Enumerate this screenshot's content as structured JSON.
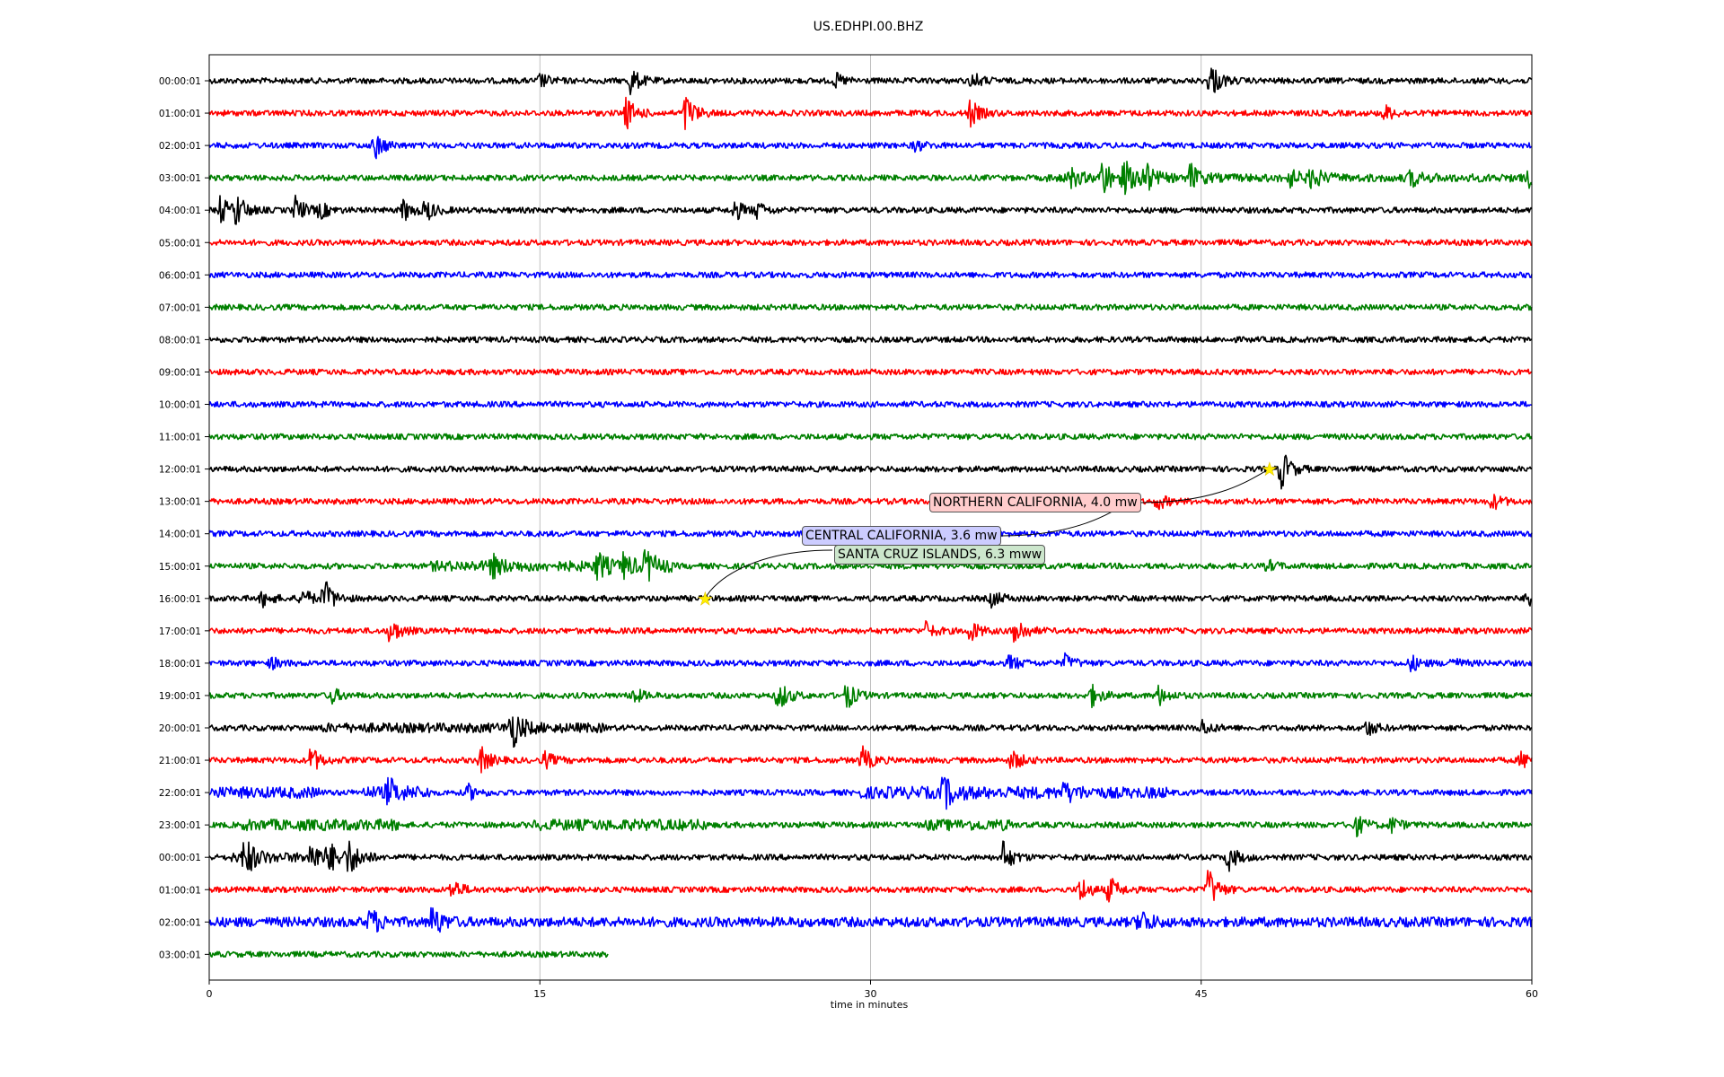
{
  "chart_data": {
    "type": "line",
    "title": "US.EDHPI.00.BHZ",
    "xlabel": "time in minutes",
    "xlim": [
      0,
      60
    ],
    "xticks": [
      "0",
      "15",
      "30",
      "45",
      "60"
    ],
    "grid": "vertical",
    "row_labels": [
      "00:00:01",
      "01:00:01",
      "02:00:01",
      "03:00:01",
      "04:00:01",
      "05:00:01",
      "06:00:01",
      "07:00:01",
      "08:00:01",
      "09:00:01",
      "10:00:01",
      "11:00:01",
      "12:00:01",
      "13:00:01",
      "14:00:01",
      "15:00:01",
      "16:00:01",
      "17:00:01",
      "18:00:01",
      "19:00:01",
      "20:00:01",
      "21:00:01",
      "22:00:01",
      "23:00:01",
      "00:00:01",
      "01:00:01",
      "02:00:01",
      "03:00:01"
    ],
    "row_colors": [
      "#000000",
      "#ff0000",
      "#0000ff",
      "#008000"
    ],
    "last_row_end_minute": 18.1,
    "events": [
      {
        "label": "NORTHERN CALIFORNIA, 4.0 mw",
        "row": 12,
        "minute": 48.1,
        "box_color": "#ffcccc"
      },
      {
        "label": "CENTRAL CALIFORNIA, 3.6 mw",
        "row": 13,
        "minute": 41.8,
        "box_color": "#ccccff"
      },
      {
        "label": "SANTA CRUZ ISLANDS, 6.3 mww",
        "row": 16,
        "minute": 22.5,
        "box_color": "#cce6cc"
      }
    ],
    "bursts": [
      [
        0,
        19.1,
        0.5
      ],
      [
        0,
        45.4,
        0.7
      ],
      [
        0,
        34.6,
        0.3
      ],
      [
        0,
        28.4,
        0.25
      ],
      [
        0,
        15.0,
        0.25
      ],
      [
        1,
        18.9,
        0.6
      ],
      [
        1,
        21.6,
        0.7
      ],
      [
        1,
        34.5,
        0.5
      ],
      [
        1,
        53.3,
        0.3
      ],
      [
        2,
        7.5,
        0.5
      ],
      [
        2,
        32.0,
        0.2
      ],
      [
        3,
        39.0,
        0.4
      ],
      [
        3,
        40.5,
        0.7
      ],
      [
        3,
        41.5,
        0.6
      ],
      [
        3,
        42.3,
        0.8
      ],
      [
        3,
        44.5,
        0.5
      ],
      [
        3,
        49.0,
        0.3
      ],
      [
        3,
        50.0,
        0.4
      ],
      [
        3,
        54.5,
        0.3
      ],
      [
        3,
        59.9,
        0.4
      ],
      [
        4,
        0.5,
        0.5
      ],
      [
        4,
        1.2,
        0.6
      ],
      [
        4,
        3.9,
        0.5
      ],
      [
        4,
        5.0,
        0.3
      ],
      [
        4,
        8.8,
        0.4
      ],
      [
        4,
        9.8,
        0.4
      ],
      [
        4,
        23.8,
        0.4
      ],
      [
        4,
        24.8,
        0.3
      ],
      [
        12,
        48.6,
        0.8
      ],
      [
        13,
        43.0,
        0.3
      ],
      [
        13,
        58.2,
        0.3
      ],
      [
        15,
        12.8,
        0.4
      ],
      [
        15,
        17.6,
        0.5
      ],
      [
        15,
        18.8,
        0.4
      ],
      [
        15,
        19.8,
        0.6
      ],
      [
        15,
        48.0,
        0.2
      ],
      [
        16,
        2.4,
        0.3
      ],
      [
        16,
        4.2,
        0.4
      ],
      [
        16,
        5.2,
        0.7
      ],
      [
        16,
        35.5,
        0.3
      ],
      [
        16,
        59.8,
        0.4
      ],
      [
        17,
        8.2,
        0.5
      ],
      [
        17,
        32.5,
        0.3
      ],
      [
        17,
        34.5,
        0.4
      ],
      [
        17,
        36.5,
        0.7
      ],
      [
        18,
        2.8,
        0.2
      ],
      [
        18,
        36.3,
        0.3
      ],
      [
        18,
        38.8,
        0.3
      ],
      [
        18,
        54.5,
        0.3
      ],
      [
        18,
        56.3,
        0.2
      ],
      [
        19,
        5.5,
        0.3
      ],
      [
        19,
        19.2,
        0.3
      ],
      [
        19,
        25.8,
        0.6
      ],
      [
        19,
        28.9,
        0.5
      ],
      [
        19,
        40.0,
        0.4
      ],
      [
        19,
        43.0,
        0.4
      ],
      [
        20,
        13.7,
        0.8
      ],
      [
        20,
        45.0,
        0.3
      ],
      [
        20,
        52.5,
        0.3
      ],
      [
        21,
        4.6,
        0.5
      ],
      [
        21,
        12.3,
        0.5
      ],
      [
        21,
        15.2,
        0.3
      ],
      [
        21,
        29.6,
        0.5
      ],
      [
        21,
        36.4,
        0.4
      ],
      [
        21,
        59.5,
        0.3
      ],
      [
        22,
        8.1,
        0.5
      ],
      [
        22,
        11.7,
        0.3
      ],
      [
        22,
        33.3,
        0.6
      ],
      [
        22,
        38.8,
        0.3
      ],
      [
        23,
        52.0,
        0.4
      ],
      [
        23,
        53.6,
        0.3
      ],
      [
        24,
        1.6,
        0.8
      ],
      [
        24,
        4.6,
        0.5
      ],
      [
        24,
        5.4,
        0.5
      ],
      [
        24,
        6.3,
        0.6
      ],
      [
        24,
        36.0,
        0.6
      ],
      [
        24,
        46.2,
        0.5
      ],
      [
        25,
        11.0,
        0.4
      ],
      [
        25,
        39.5,
        0.5
      ],
      [
        25,
        40.8,
        0.5
      ],
      [
        25,
        45.3,
        0.8
      ],
      [
        26,
        7.3,
        0.5
      ],
      [
        26,
        10.1,
        0.6
      ],
      [
        26,
        42.2,
        0.5
      ]
    ],
    "noisy_segments": [
      [
        15,
        10,
        21,
        0.3
      ],
      [
        20,
        5,
        18,
        0.25
      ],
      [
        22,
        0,
        5,
        0.35
      ],
      [
        22,
        7,
        10,
        0.4
      ],
      [
        22,
        29.5,
        40,
        0.4
      ],
      [
        22,
        40,
        43.5,
        0.35
      ],
      [
        23,
        1.5,
        8.6,
        0.35
      ],
      [
        23,
        14.7,
        22.6,
        0.35
      ],
      [
        23,
        32.5,
        36.5,
        0.35
      ],
      [
        24,
        1,
        7.5,
        0.25
      ],
      [
        26,
        0,
        60,
        0.25
      ],
      [
        3,
        38,
        60,
        0.15
      ]
    ]
  }
}
